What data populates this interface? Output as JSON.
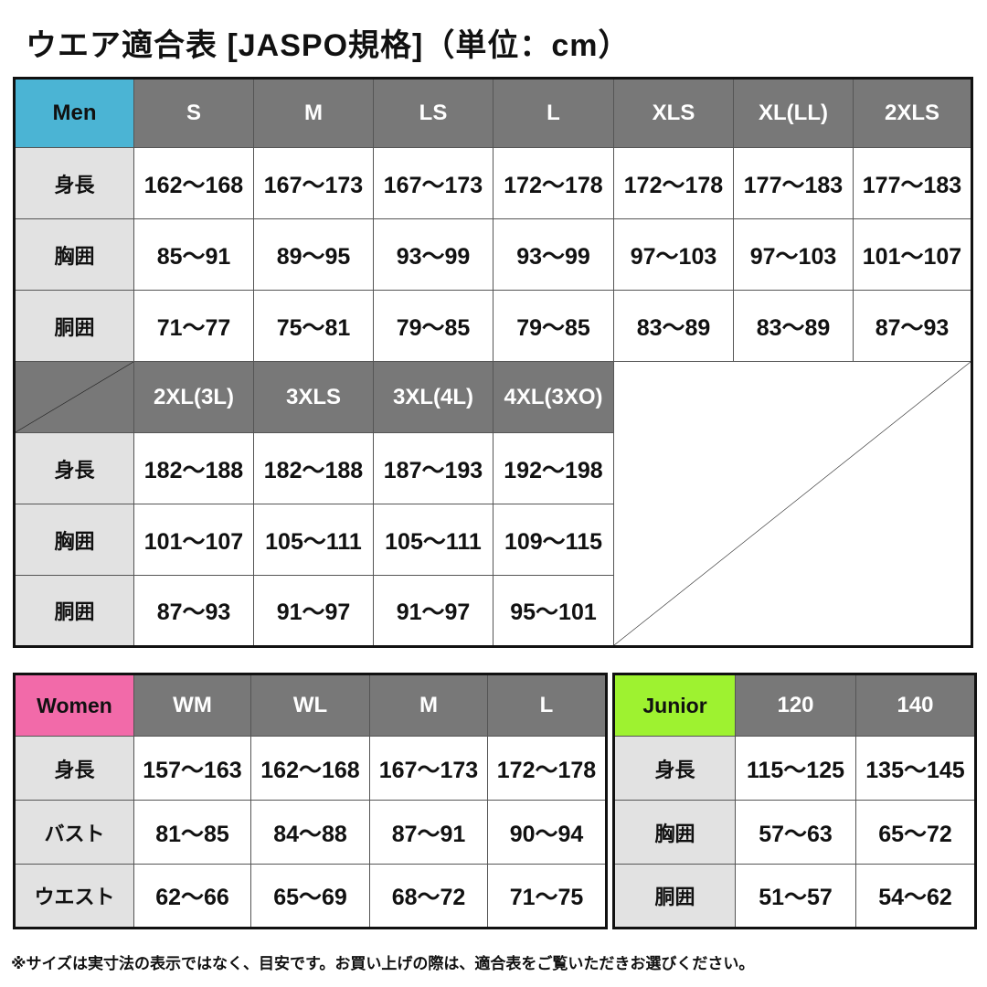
{
  "title": "ウエア適合表 [JASPO規格]（単位：cm）",
  "colors": {
    "men": "#4bb4d4",
    "women": "#f26aa9",
    "junior": "#9ef230",
    "header": "#787878",
    "label": "#e2e2e2"
  },
  "men": {
    "label": "Men",
    "row_labels": [
      "身長",
      "胸囲",
      "胴囲"
    ],
    "block1": {
      "sizes": [
        "S",
        "M",
        "LS",
        "L",
        "XLS",
        "XL(LL)",
        "2XLS"
      ],
      "rows": [
        [
          "162〜168",
          "167〜173",
          "167〜173",
          "172〜178",
          "172〜178",
          "177〜183",
          "177〜183"
        ],
        [
          "85〜91",
          "89〜95",
          "93〜99",
          "93〜99",
          "97〜103",
          "97〜103",
          "101〜107"
        ],
        [
          "71〜77",
          "75〜81",
          "79〜85",
          "79〜85",
          "83〜89",
          "83〜89",
          "87〜93"
        ]
      ]
    },
    "block2": {
      "sizes": [
        "2XL(3L)",
        "3XLS",
        "3XL(4L)",
        "4XL(3XO)"
      ],
      "rows": [
        [
          "182〜188",
          "182〜188",
          "187〜193",
          "192〜198"
        ],
        [
          "101〜107",
          "105〜111",
          "105〜111",
          "109〜115"
        ],
        [
          "87〜93",
          "91〜97",
          "91〜97",
          "95〜101"
        ]
      ]
    }
  },
  "women": {
    "label": "Women",
    "sizes": [
      "WM",
      "WL",
      "M",
      "L"
    ],
    "row_labels": [
      "身長",
      "バスト",
      "ウエスト"
    ],
    "rows": [
      [
        "157〜163",
        "162〜168",
        "167〜173",
        "172〜178"
      ],
      [
        "81〜85",
        "84〜88",
        "87〜91",
        "90〜94"
      ],
      [
        "62〜66",
        "65〜69",
        "68〜72",
        "71〜75"
      ]
    ]
  },
  "junior": {
    "label": "Junior",
    "sizes": [
      "120",
      "140"
    ],
    "row_labels": [
      "身長",
      "胸囲",
      "胴囲"
    ],
    "rows": [
      [
        "115〜125",
        "135〜145"
      ],
      [
        "57〜63",
        "65〜72"
      ],
      [
        "51〜57",
        "54〜62"
      ]
    ]
  },
  "note": "※サイズは実寸法の表示ではなく、目安です。お買い上げの際は、適合表をご覧いただきお選びください。"
}
